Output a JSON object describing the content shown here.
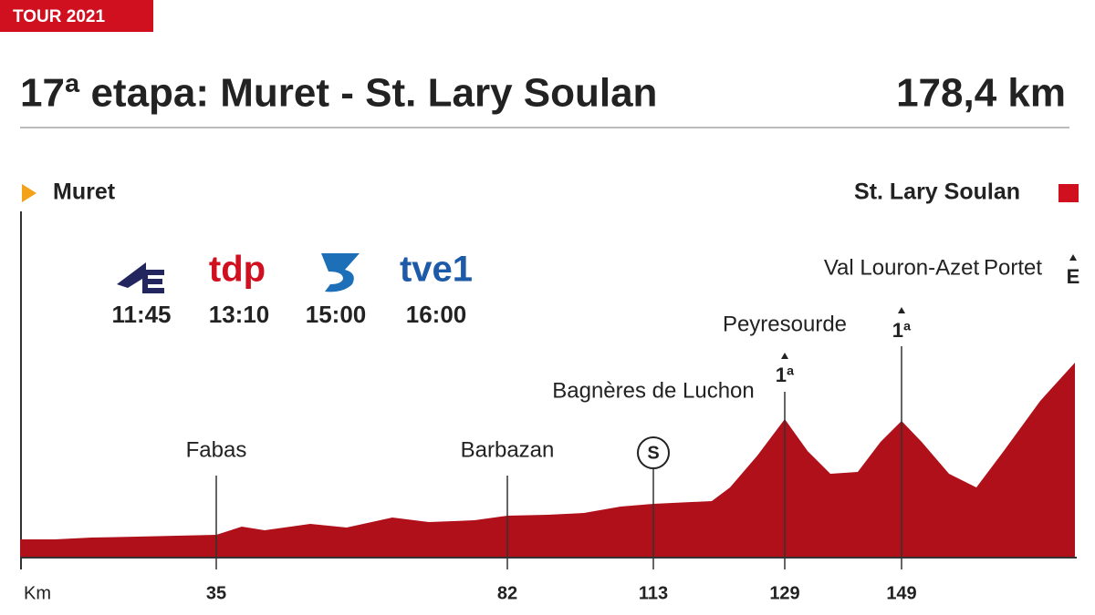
{
  "header": {
    "badge": "TOUR 2021",
    "title": "17ª etapa: Muret - St. Lary Soulan",
    "distance": "178,4 km"
  },
  "start": "Muret",
  "finish": "St. Lary Soulan",
  "broadcasts": [
    {
      "time": "11:45"
    },
    {
      "logo": "tdp",
      "time": "13:10"
    },
    {
      "time": "15:00"
    },
    {
      "logo": "tve1",
      "time": "16:00"
    }
  ],
  "axis_label": "Km",
  "waypoints": [
    {
      "name": "Fabas",
      "km": "35"
    },
    {
      "name": "Barbazan",
      "km": "82"
    },
    {
      "name": "Bagnères de Luchon",
      "km": "113",
      "marker": "S"
    },
    {
      "name": "Peyresourde",
      "km": "129",
      "category": "1ª"
    },
    {
      "name": "Val Louron-Azet",
      "km": "149",
      "category": "1ª"
    },
    {
      "name": "Portet",
      "category": "E"
    }
  ]
}
